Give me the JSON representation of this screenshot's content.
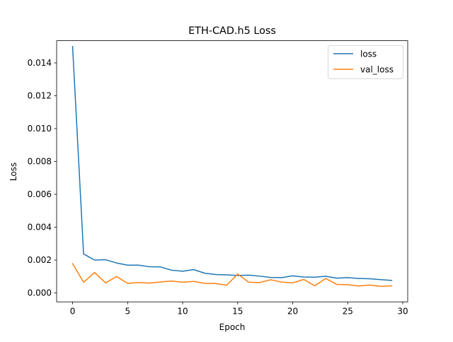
{
  "chart_data": {
    "type": "line",
    "title": "ETH-CAD.h5 Loss",
    "xlabel": "Epoch",
    "ylabel": "Loss",
    "xlim": [
      -1.45,
      30.45
    ],
    "ylim": [
      -0.000545,
      0.01535
    ],
    "x_ticks": [
      0,
      5,
      10,
      15,
      20,
      25,
      30
    ],
    "x_tick_labels": [
      "0",
      "5",
      "10",
      "15",
      "20",
      "25",
      "30"
    ],
    "y_ticks": [
      0.0,
      0.002,
      0.004,
      0.006,
      0.008,
      0.01,
      0.012,
      0.014
    ],
    "y_tick_labels": [
      "0.000",
      "0.002",
      "0.004",
      "0.006",
      "0.008",
      "0.010",
      "0.012",
      "0.014"
    ],
    "grid": false,
    "legend_position": "top-right",
    "x": [
      0,
      1,
      2,
      3,
      4,
      5,
      6,
      7,
      8,
      9,
      10,
      11,
      12,
      13,
      14,
      15,
      16,
      17,
      18,
      19,
      20,
      21,
      22,
      23,
      24,
      25,
      26,
      27,
      28,
      29
    ],
    "series": [
      {
        "name": "loss",
        "color": "#1f77b4",
        "values": [
          0.015,
          0.00237,
          0.002,
          0.00202,
          0.00182,
          0.00169,
          0.00169,
          0.00159,
          0.00158,
          0.00138,
          0.00132,
          0.00142,
          0.0012,
          0.00112,
          0.0011,
          0.00106,
          0.00108,
          0.00102,
          0.00094,
          0.00093,
          0.00104,
          0.00097,
          0.00096,
          0.00101,
          0.0009,
          0.00093,
          0.00088,
          0.00086,
          0.00081,
          0.00076
        ]
      },
      {
        "name": "val_loss",
        "color": "#ff7f0e",
        "values": [
          0.00178,
          0.00065,
          0.00124,
          0.00061,
          0.001,
          0.00058,
          0.00063,
          0.0006,
          0.00067,
          0.00072,
          0.00065,
          0.0007,
          0.00058,
          0.00057,
          0.00047,
          0.00115,
          0.00065,
          0.00063,
          0.0008,
          0.00066,
          0.00061,
          0.00082,
          0.00043,
          0.00088,
          0.00052,
          0.0005,
          0.00042,
          0.00048,
          0.0004,
          0.00043
        ]
      }
    ]
  }
}
